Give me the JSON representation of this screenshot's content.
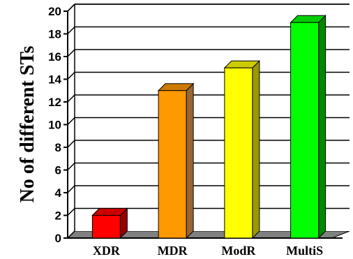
{
  "chart_data": {
    "type": "bar",
    "title": "",
    "xlabel": "",
    "ylabel": "No of different STs",
    "categories": [
      "XDR",
      "MDR",
      "ModR",
      "MultiS"
    ],
    "values": [
      2,
      13,
      15,
      19
    ],
    "ylim": [
      0,
      20
    ],
    "yticks": [
      0,
      2,
      4,
      6,
      8,
      10,
      12,
      14,
      16,
      18,
      20
    ],
    "grid": true,
    "style": "3d",
    "colors": {
      "XDR": {
        "front": "#ff0000",
        "side": "#990000",
        "top": "#cc0000"
      },
      "MDR": {
        "front": "#ff9900",
        "side": "#996633",
        "top": "#cc7a00"
      },
      "ModR": {
        "front": "#ffff00",
        "side": "#999900",
        "top": "#cccc00"
      },
      "MultiS": {
        "front": "#00ff00",
        "side": "#008800",
        "top": "#00cc00"
      }
    },
    "floor_color": "#808080",
    "wall_color": "#ffffff"
  }
}
